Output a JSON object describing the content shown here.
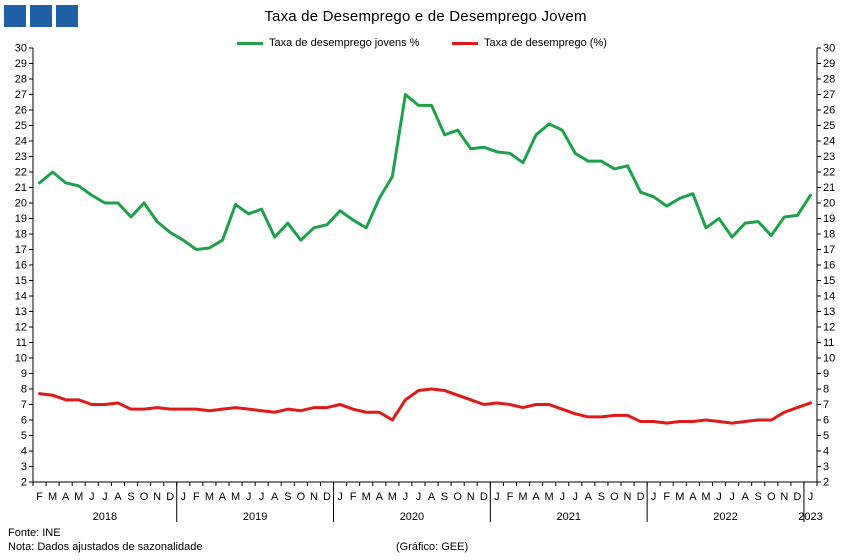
{
  "title": "Taxa de Desemprego e de Desemprego Jovem",
  "footer": {
    "source": "Fonte: INE",
    "note": "Nota: Dados ajustados de sazonalidade",
    "credit": "(Gráfico: GEE)"
  },
  "colors": {
    "brand": "#1f5fa5",
    "youth": "#1fa04b",
    "total": "#e01919",
    "axis": "#000000"
  },
  "logo": {
    "icon": "gee-logo-icon"
  },
  "chart_data": {
    "type": "line",
    "title": "Taxa de Desemprego e de Desemprego Jovem",
    "ylim": [
      2,
      30
    ],
    "y_ticks": [
      2,
      3,
      4,
      5,
      6,
      7,
      8,
      9,
      10,
      11,
      12,
      13,
      14,
      15,
      16,
      17,
      18,
      19,
      20,
      21,
      22,
      23,
      24,
      25,
      26,
      27,
      28,
      29,
      30
    ],
    "y_axis_both_sides": true,
    "grid": false,
    "legend_position": "top-center",
    "x_month_labels": [
      "F",
      "M",
      "A",
      "M",
      "J",
      "J",
      "A",
      "S",
      "O",
      "N",
      "D",
      "J",
      "F",
      "M",
      "A",
      "M",
      "J",
      "J",
      "A",
      "S",
      "O",
      "N",
      "D",
      "J",
      "F",
      "M",
      "A",
      "M",
      "J",
      "J",
      "A",
      "S",
      "O",
      "N",
      "D",
      "J",
      "F",
      "M",
      "A",
      "M",
      "J",
      "J",
      "A",
      "S",
      "O",
      "N",
      "D",
      "J",
      "F",
      "M",
      "A",
      "M",
      "J",
      "J",
      "A",
      "S",
      "O",
      "N",
      "D",
      "J"
    ],
    "years": [
      {
        "label": "2018",
        "start": 0,
        "end": 10
      },
      {
        "label": "2019",
        "start": 11,
        "end": 22
      },
      {
        "label": "2020",
        "start": 23,
        "end": 34
      },
      {
        "label": "2021",
        "start": 35,
        "end": 46
      },
      {
        "label": "2022",
        "start": 47,
        "end": 58
      },
      {
        "label": "2023",
        "start": 59,
        "end": 59
      }
    ],
    "series": [
      {
        "name": "Taxa de desemprego jovens %",
        "color": "#1fa04b",
        "values": [
          21.3,
          22.0,
          21.3,
          21.1,
          20.5,
          20.0,
          20.0,
          19.1,
          20.0,
          18.8,
          18.1,
          17.6,
          17.0,
          17.1,
          17.6,
          19.9,
          19.3,
          19.6,
          17.8,
          18.7,
          17.6,
          18.4,
          18.6,
          19.5,
          18.9,
          18.4,
          20.3,
          21.7,
          27.0,
          26.3,
          26.3,
          24.4,
          24.7,
          23.5,
          23.6,
          23.3,
          23.2,
          22.6,
          24.4,
          25.1,
          24.7,
          23.2,
          22.7,
          22.7,
          22.2,
          22.4,
          20.7,
          20.4,
          19.8,
          20.3,
          20.6,
          18.4,
          19.0,
          17.8,
          18.7,
          18.8,
          17.9,
          19.1,
          19.2,
          20.5
        ]
      },
      {
        "name": "Taxa de desemprego (%)",
        "color": "#e01919",
        "values": [
          7.7,
          7.6,
          7.3,
          7.3,
          7.0,
          7.0,
          7.1,
          6.7,
          6.7,
          6.8,
          6.7,
          6.7,
          6.7,
          6.6,
          6.7,
          6.8,
          6.7,
          6.6,
          6.5,
          6.7,
          6.6,
          6.8,
          6.8,
          7.0,
          6.7,
          6.5,
          6.5,
          6.0,
          7.3,
          7.9,
          8.0,
          7.9,
          7.6,
          7.3,
          7.0,
          7.1,
          7.0,
          6.8,
          7.0,
          7.0,
          6.7,
          6.4,
          6.2,
          6.2,
          6.3,
          6.3,
          5.9,
          5.9,
          5.8,
          5.9,
          5.9,
          6.0,
          5.9,
          5.8,
          5.9,
          6.0,
          6.0,
          6.5,
          6.8,
          7.1
        ]
      }
    ]
  }
}
